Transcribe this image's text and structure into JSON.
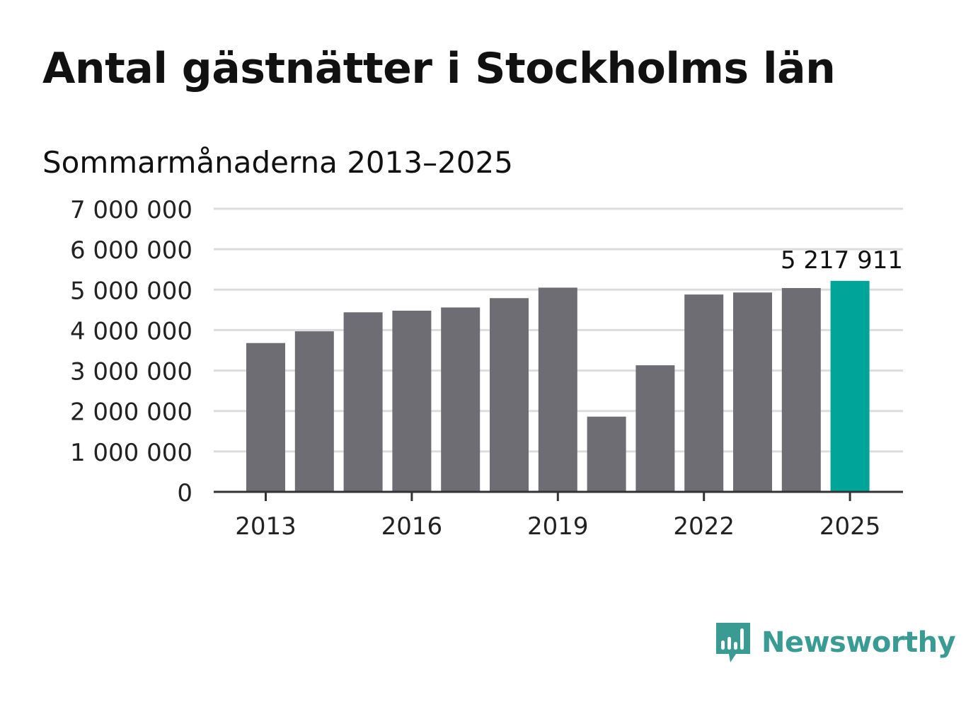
{
  "title": "Antal gästnätter i Stockholms län",
  "subtitle": "Sommarmånaderna 2013–2025",
  "brand": {
    "name": "Newsworthy",
    "icon": "newsworthy-logo-icon",
    "color": "#3a9b93"
  },
  "colors": {
    "bar": "#6e6d73",
    "highlight": "#00a499",
    "grid": "#dcdcdc",
    "axis": "#333333"
  },
  "chart_data": {
    "type": "bar",
    "categories": [
      "2013",
      "2014",
      "2015",
      "2016",
      "2017",
      "2018",
      "2019",
      "2020",
      "2021",
      "2022",
      "2023",
      "2024",
      "2025"
    ],
    "values": [
      3680000,
      3970000,
      4440000,
      4480000,
      4560000,
      4790000,
      5050000,
      1860000,
      3130000,
      4880000,
      4930000,
      5040000,
      5217911
    ],
    "highlight_index": 12,
    "data_labels": [
      {
        "index": 12,
        "text": "5 217 911"
      }
    ],
    "x_tick_labels": [
      "2013",
      "2016",
      "2019",
      "2022",
      "2025"
    ],
    "y_tick_labels": [
      "0",
      "1 000 000",
      "2 000 000",
      "3 000 000",
      "4 000 000",
      "5 000 000",
      "6 000 000",
      "7 000 000"
    ],
    "y_ticks": [
      0,
      1000000,
      2000000,
      3000000,
      4000000,
      5000000,
      6000000,
      7000000
    ],
    "ylim": [
      0,
      7000000
    ],
    "grid": true,
    "legend": "none",
    "xlabel": "",
    "ylabel": ""
  }
}
